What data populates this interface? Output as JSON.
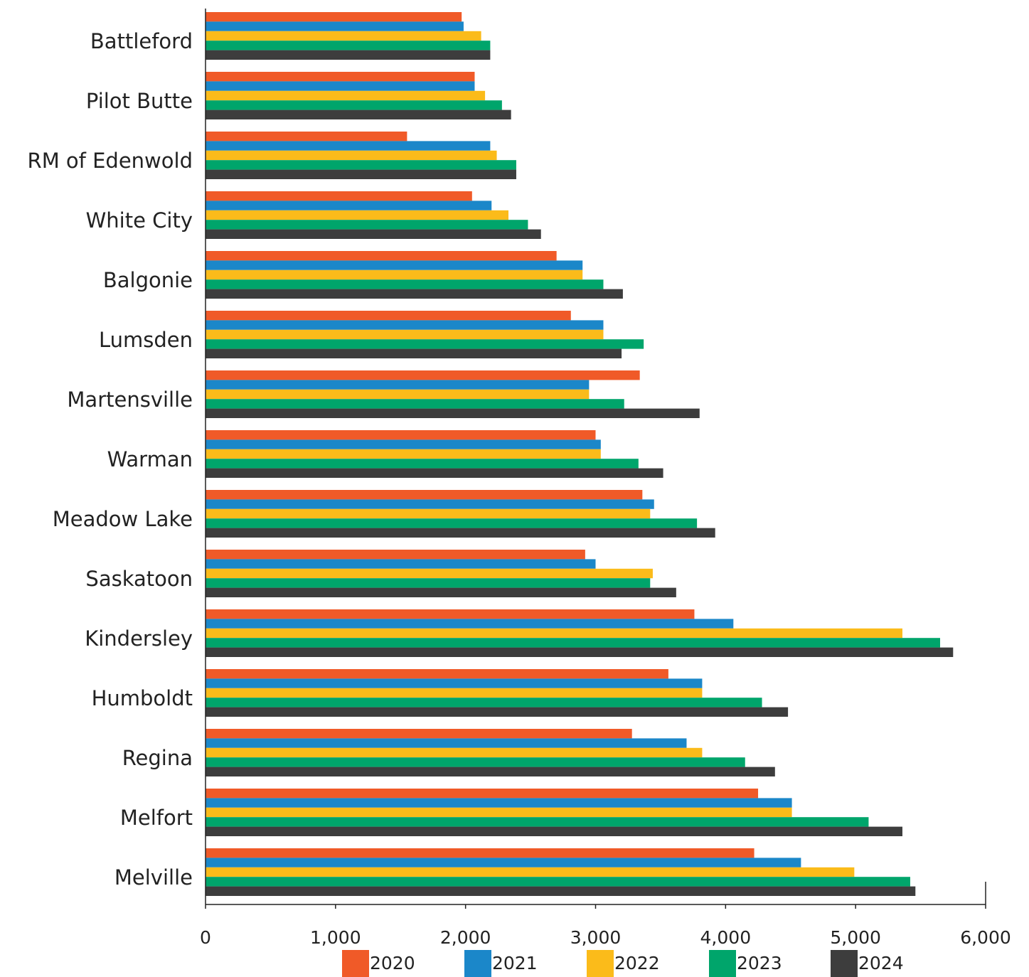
{
  "chart_data": {
    "type": "bar",
    "orientation": "horizontal",
    "categories": [
      "Battleford",
      "Pilot Butte",
      "RM of Edenwold",
      "White City",
      "Balgonie",
      "Lumsden",
      "Martensville",
      "Warman",
      "Meadow Lake",
      "Saskatoon",
      "Kindersley",
      "Humboldt",
      "Regina",
      "Melfort",
      "Melville"
    ],
    "series": [
      {
        "name": "2020",
        "color": "#f05a28",
        "values": [
          1970,
          2070,
          1550,
          2050,
          2700,
          2810,
          3340,
          3000,
          3360,
          2920,
          3760,
          3560,
          3280,
          4250,
          4220
        ]
      },
      {
        "name": "2021",
        "color": "#1b87c9",
        "values": [
          1985,
          2070,
          2190,
          2200,
          2900,
          3060,
          2950,
          3040,
          3450,
          3000,
          4060,
          3820,
          3700,
          4510,
          4580
        ]
      },
      {
        "name": "2022",
        "color": "#fbbb1a",
        "values": [
          2120,
          2150,
          2240,
          2330,
          2900,
          3060,
          2950,
          3040,
          3420,
          3440,
          5360,
          3820,
          3820,
          4510,
          4990
        ]
      },
      {
        "name": "2023",
        "color": "#00a56b",
        "values": [
          2190,
          2280,
          2390,
          2480,
          3060,
          3370,
          3220,
          3330,
          3780,
          3420,
          5650,
          4280,
          4150,
          5100,
          5420
        ]
      },
      {
        "name": "2024",
        "color": "#3d3d3d",
        "values": [
          2190,
          2350,
          2390,
          2580,
          3210,
          3200,
          3800,
          3520,
          3920,
          3620,
          5750,
          4480,
          4380,
          5360,
          5460
        ]
      }
    ],
    "xlim": [
      0,
      6000
    ],
    "xticks": [
      0,
      {
        "value": 1000,
        "label": "1,000"
      },
      {
        "value": 2000,
        "label": "2,000"
      },
      {
        "value": 3000,
        "label": "3,000"
      },
      {
        "value": 4000,
        "label": "4,000"
      },
      {
        "value": 5000,
        "label": "5,000"
      },
      {
        "value": 6000,
        "label": "6,000"
      }
    ],
    "legend": "bottom"
  }
}
